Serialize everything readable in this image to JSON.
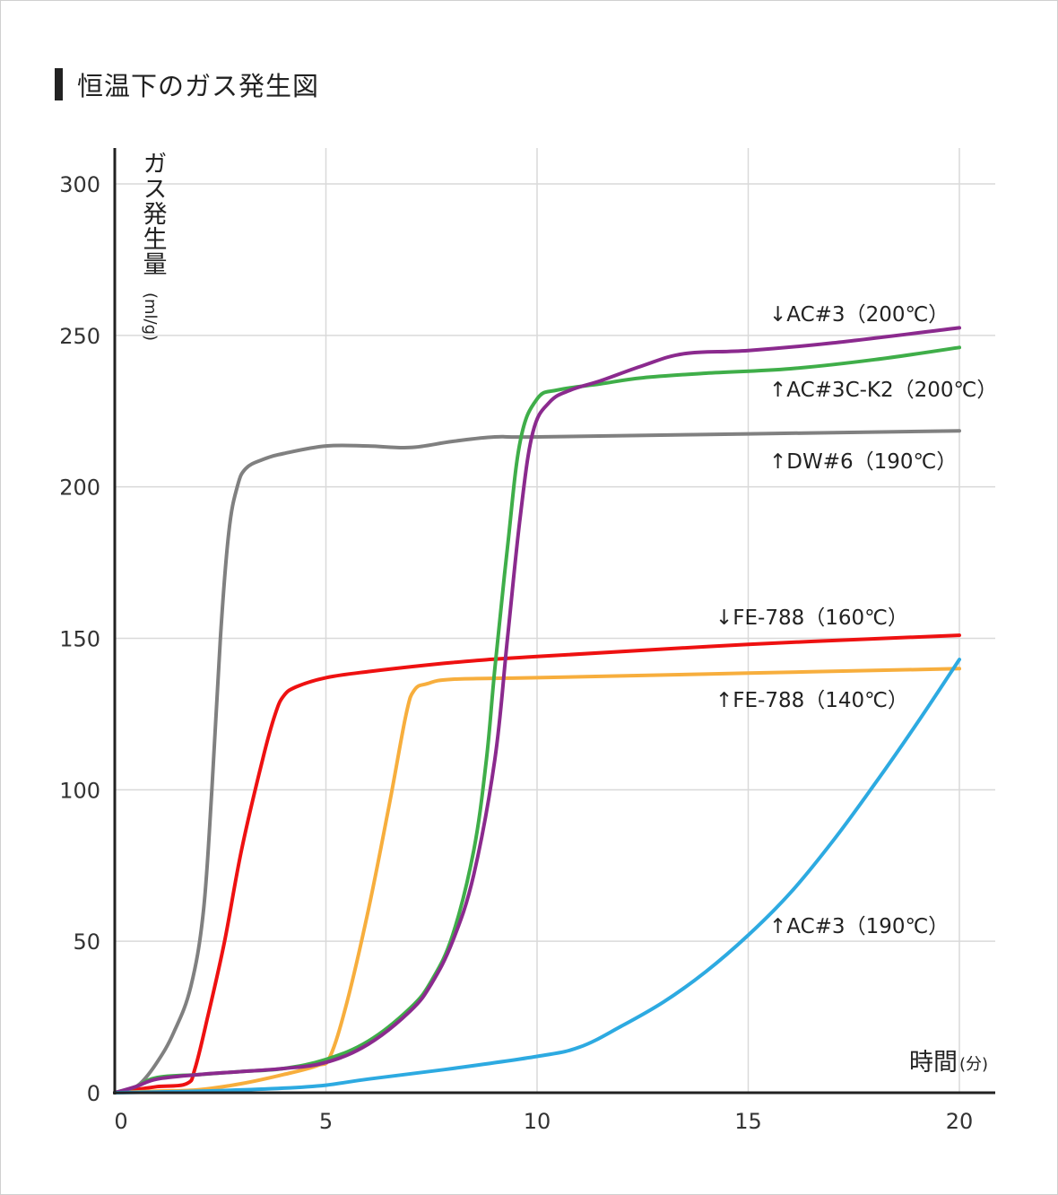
{
  "title": "恒温下のガス発生図",
  "chart_data": {
    "type": "line",
    "title": "恒温下のガス発生図",
    "ylabel": "ガス発生量",
    "ylabel_unit": "(ml/g)",
    "xlabel": "時間",
    "xlabel_unit": "(分)",
    "xlim": [
      0,
      20.8
    ],
    "ylim": [
      0,
      310
    ],
    "xticks": [
      0,
      5,
      10,
      15,
      20
    ],
    "yticks": [
      0,
      50,
      100,
      150,
      200,
      250,
      300
    ],
    "grid": true,
    "series": [
      {
        "name": "DW#6 (190℃)",
        "label_text": "↑DW#6（190℃）",
        "color": "#808080",
        "points": [
          [
            0,
            0
          ],
          [
            0.3,
            1
          ],
          [
            0.6,
            3
          ],
          [
            1,
            10
          ],
          [
            1.4,
            20
          ],
          [
            1.8,
            35
          ],
          [
            2.1,
            60
          ],
          [
            2.3,
            100
          ],
          [
            2.5,
            150
          ],
          [
            2.7,
            185
          ],
          [
            2.9,
            200
          ],
          [
            3.1,
            206
          ],
          [
            3.5,
            209
          ],
          [
            4,
            211
          ],
          [
            5,
            213.5
          ],
          [
            6,
            213.5
          ],
          [
            7,
            213
          ],
          [
            8,
            215
          ],
          [
            9,
            216.5
          ],
          [
            10,
            216.5
          ],
          [
            15,
            217.5
          ],
          [
            20,
            218.5
          ]
        ]
      },
      {
        "name": "FE-788 (160℃)",
        "label_text": "↓FE-788（160℃）",
        "color": "#ee1111",
        "points": [
          [
            0,
            0
          ],
          [
            0.5,
            1
          ],
          [
            1,
            2
          ],
          [
            1.7,
            3
          ],
          [
            1.9,
            8
          ],
          [
            2.2,
            25
          ],
          [
            2.6,
            50
          ],
          [
            3,
            80
          ],
          [
            3.5,
            110
          ],
          [
            3.8,
            125
          ],
          [
            4,
            131
          ],
          [
            4.3,
            134
          ],
          [
            5,
            137
          ],
          [
            6,
            139
          ],
          [
            8,
            142
          ],
          [
            10,
            144
          ],
          [
            15,
            148
          ],
          [
            20,
            151
          ]
        ]
      },
      {
        "name": "FE-788 (140℃)",
        "label_text": "↑FE-788（140℃）",
        "color": "#f7ae3d",
        "points": [
          [
            0,
            0
          ],
          [
            1,
            0.5
          ],
          [
            2,
            1
          ],
          [
            3,
            3
          ],
          [
            4,
            6
          ],
          [
            4.8,
            9
          ],
          [
            5.1,
            12
          ],
          [
            5.5,
            30
          ],
          [
            6,
            60
          ],
          [
            6.5,
            95
          ],
          [
            6.9,
            125
          ],
          [
            7.1,
            133
          ],
          [
            7.4,
            135
          ],
          [
            8,
            136.5
          ],
          [
            10,
            137
          ],
          [
            15,
            138.5
          ],
          [
            20,
            140
          ]
        ]
      },
      {
        "name": "AC#3C-K2 (200℃)",
        "label_text": "↑AC#3C-K2（200℃）",
        "color": "#3fae49",
        "points": [
          [
            0,
            0
          ],
          [
            0.5,
            2
          ],
          [
            1,
            5
          ],
          [
            2,
            6
          ],
          [
            3,
            7
          ],
          [
            4,
            8
          ],
          [
            5,
            11
          ],
          [
            6,
            17
          ],
          [
            7,
            28
          ],
          [
            7.5,
            37
          ],
          [
            8,
            52
          ],
          [
            8.5,
            80
          ],
          [
            8.8,
            110
          ],
          [
            9,
            140
          ],
          [
            9.3,
            180
          ],
          [
            9.6,
            215
          ],
          [
            10,
            229
          ],
          [
            10.5,
            232
          ],
          [
            11.5,
            234
          ],
          [
            12.5,
            236
          ],
          [
            14,
            237.5
          ],
          [
            16,
            239
          ],
          [
            18,
            242
          ],
          [
            20,
            246
          ]
        ]
      },
      {
        "name": "AC#3 (200℃)",
        "label_text": "↓AC#3（200℃）",
        "color": "#8b2a8e",
        "points": [
          [
            0,
            0
          ],
          [
            0.5,
            2
          ],
          [
            1,
            4.5
          ],
          [
            2,
            6
          ],
          [
            3,
            7
          ],
          [
            4,
            8
          ],
          [
            5,
            10
          ],
          [
            6,
            16
          ],
          [
            7,
            27
          ],
          [
            7.5,
            36
          ],
          [
            8,
            50
          ],
          [
            8.5,
            72
          ],
          [
            9,
            110
          ],
          [
            9.3,
            150
          ],
          [
            9.6,
            190
          ],
          [
            9.9,
            218
          ],
          [
            10.3,
            228
          ],
          [
            10.8,
            232
          ],
          [
            11.5,
            235
          ],
          [
            12.5,
            240
          ],
          [
            13.5,
            244
          ],
          [
            15,
            245
          ],
          [
            17,
            247.5
          ],
          [
            20,
            252.5
          ]
        ]
      },
      {
        "name": "AC#3 (190℃)",
        "label_text": "↑AC#3（190℃）",
        "color": "#2daae1",
        "points": [
          [
            0,
            0
          ],
          [
            2,
            0.5
          ],
          [
            4,
            1.5
          ],
          [
            5,
            2.5
          ],
          [
            6,
            4.5
          ],
          [
            8,
            8
          ],
          [
            10,
            12
          ],
          [
            11,
            15
          ],
          [
            12,
            22
          ],
          [
            13,
            30
          ],
          [
            14,
            40
          ],
          [
            15,
            52
          ],
          [
            16,
            66
          ],
          [
            17,
            83
          ],
          [
            18,
            102
          ],
          [
            19,
            122
          ],
          [
            20,
            143
          ]
        ]
      }
    ]
  }
}
